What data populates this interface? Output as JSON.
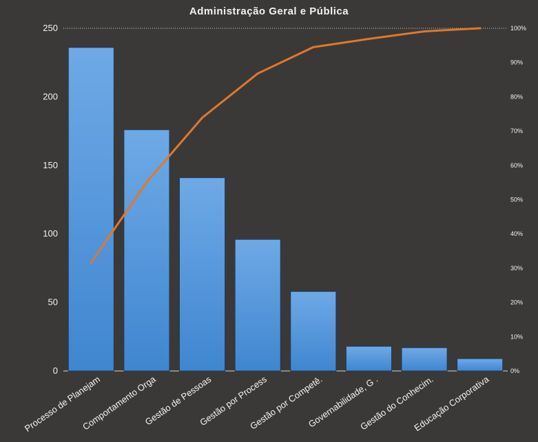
{
  "chart_data": {
    "type": "bar",
    "title": "Administração  Geral  e Pública",
    "categories": [
      "Processo de Planejam",
      "Comportamento  Orga",
      "Gestão de Pessoas",
      "Gestão por Process",
      "Gestão por Competê.",
      "Governabilidade, G .",
      "Gestão do Conhecim.",
      "Educação Corporativa"
    ],
    "series": [
      {
        "values": [
          236,
          176,
          141,
          96,
          58,
          18,
          17,
          9
        ]
      },
      {
        "axis": "right",
        "type": "line",
        "values": [
          31.6,
          55.1,
          73.9,
          86.8,
          94.5,
          96.9,
          99.1,
          100
        ]
      }
    ],
    "ylim": [
      0,
      250
    ],
    "yticks": [
      "0",
      "50",
      "100",
      "150",
      "200",
      "250"
    ],
    "y2lim": [
      0,
      100
    ],
    "y2ticks": [
      "0%",
      "10%",
      "20%",
      "30%",
      "40%",
      "50%",
      "60%",
      "70%",
      "80%",
      "90%",
      "100%"
    ],
    "grid": "top-line dotted",
    "colors": {
      "bar": "#4a90d9",
      "line": "#e0782a",
      "background": "#3a3938",
      "text": "#f2f2f2"
    }
  }
}
